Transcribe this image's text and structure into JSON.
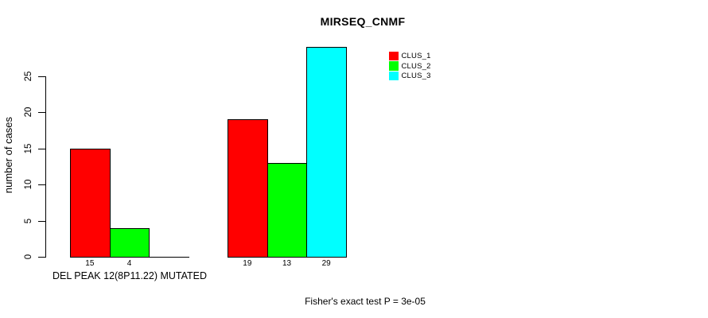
{
  "chart_data": {
    "type": "bar",
    "title": "MIRSEQ_CNMF",
    "ylabel": "number of cases",
    "xlabel": "DEL PEAK 12(8P11.22) MUTATED",
    "footer": "Fisher's exact test P = 3e-05",
    "yticks": [
      0,
      5,
      10,
      15,
      20,
      25
    ],
    "ylim": [
      0,
      29
    ],
    "grid": false,
    "legend_position": "top-right",
    "background": "#ffffff",
    "axis_color": "#000000",
    "series": [
      {
        "name": "CLUS_1",
        "color": "#FF0000"
      },
      {
        "name": "CLUS_2",
        "color": "#00FF00"
      },
      {
        "name": "CLUS_3",
        "color": "#00FFFF"
      }
    ],
    "groups": [
      {
        "values": [
          15,
          4,
          0
        ],
        "bar_labels": [
          "15",
          "4",
          ""
        ]
      },
      {
        "values": [
          19,
          13,
          29
        ],
        "bar_labels": [
          "19",
          "13",
          "29"
        ]
      }
    ]
  }
}
